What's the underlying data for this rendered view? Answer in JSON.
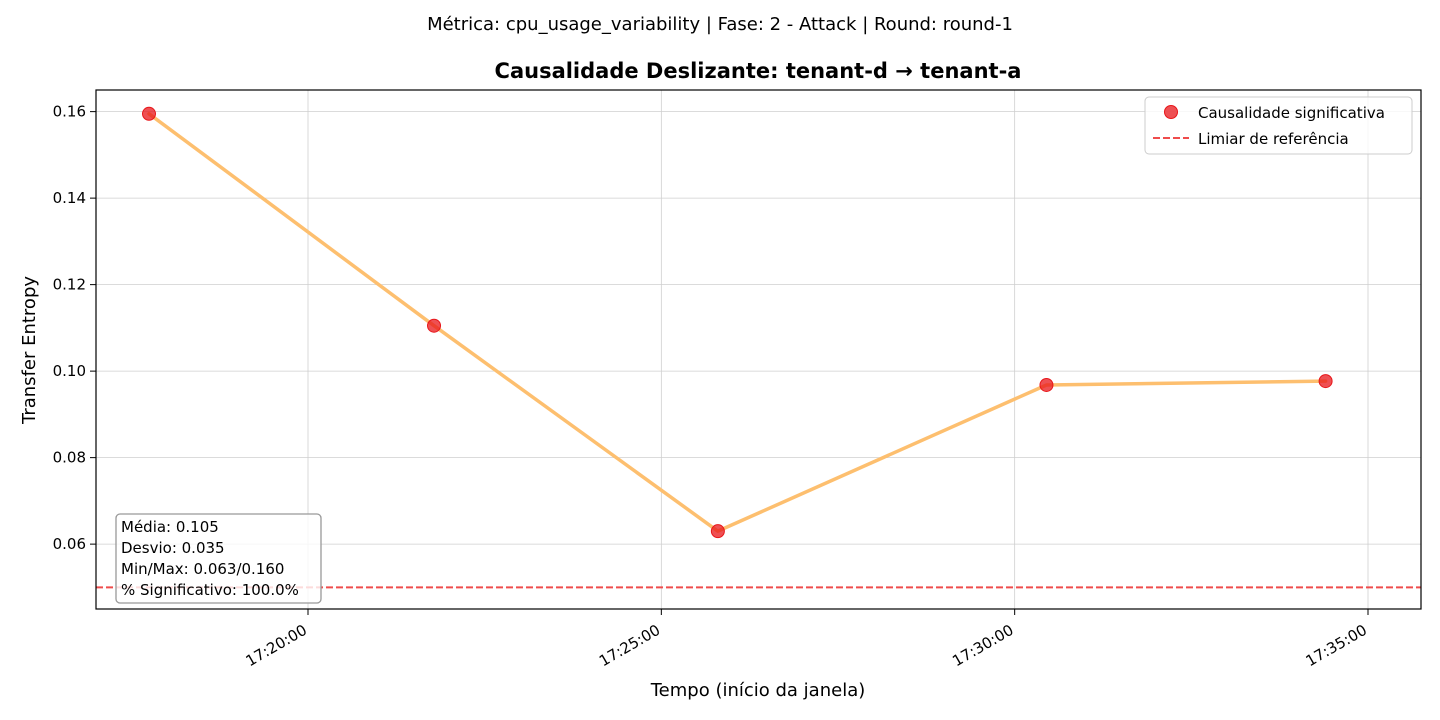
{
  "suptitle": "Métrica: cpu_usage_variability | Fase: 2 - Attack | Round: round-1",
  "chart_data": {
    "type": "line",
    "title": "Causalidade Deslizante: tenant-d → tenant-a",
    "xlabel": "Tempo (início da janela)",
    "ylabel": "Transfer Entropy",
    "x_is_time": true,
    "xlim": [
      "17:17:00",
      "17:35:45"
    ],
    "ylim": [
      0.045,
      0.165
    ],
    "x_ticks": [
      "17:20:00",
      "17:25:00",
      "17:30:00",
      "17:35:00"
    ],
    "y_ticks": [
      "0.06",
      "0.08",
      "0.10",
      "0.12",
      "0.14",
      "0.16"
    ],
    "grid": true,
    "legend_position": "top-right",
    "series": [
      {
        "x": [
          "17:17:45",
          "17:21:47",
          "17:25:48",
          "17:30:27",
          "17:34:24"
        ],
        "y": [
          0.1595,
          0.1105,
          0.063,
          0.0968,
          0.0977
        ],
        "color": "#fdbf6f"
      }
    ],
    "significant_markers": {
      "name": "Causalidade significativa",
      "x": [
        "17:17:45",
        "17:21:47",
        "17:25:48",
        "17:30:27",
        "17:34:24"
      ],
      "y": [
        0.1595,
        0.1105,
        0.063,
        0.0968,
        0.0977
      ],
      "color": "#e8161a"
    },
    "threshold": {
      "name": "Limiar de referência",
      "value": 0.05,
      "color": "#ef4c4c",
      "style": "dashed"
    },
    "stats_box": [
      "Média: 0.105",
      "Desvio: 0.035",
      "Min/Max: 0.063/0.160",
      "% Significativo: 100.0%"
    ]
  }
}
